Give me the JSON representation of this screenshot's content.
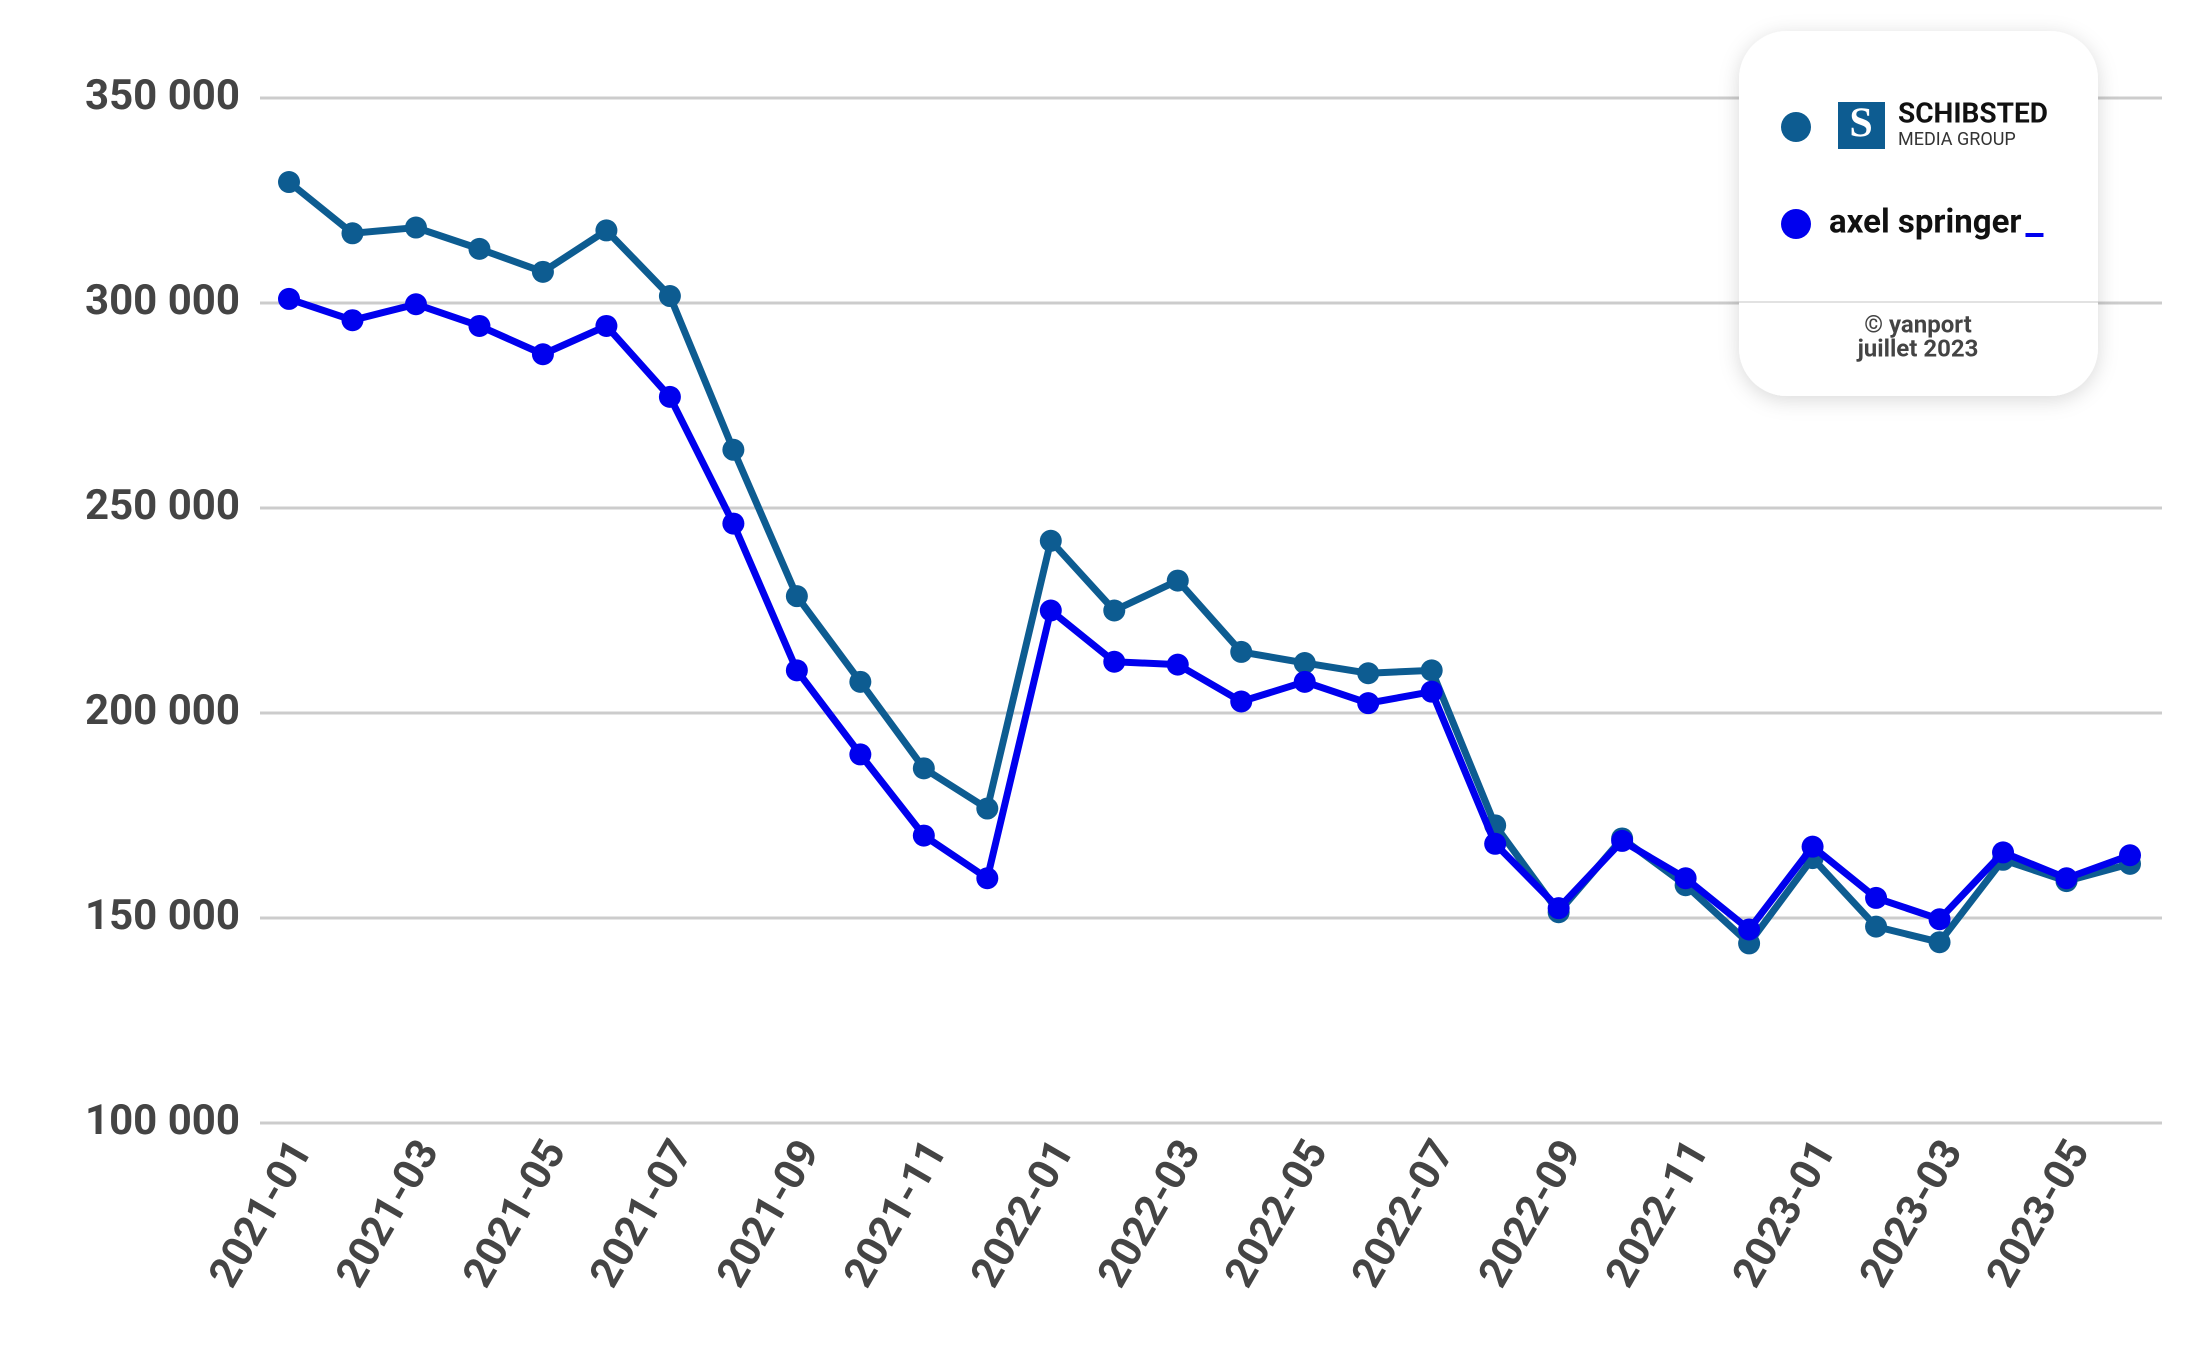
{
  "chart_data": {
    "type": "line",
    "categories": [
      "2021-01",
      null,
      "2021-03",
      null,
      "2021-05",
      null,
      "2021-07",
      null,
      "2021-09",
      null,
      "2021-11",
      null,
      "2022-01",
      null,
      "2022-03",
      null,
      "2022-05",
      null,
      "2022-07",
      null,
      "2022-09",
      null,
      "2022-11",
      null,
      "2023-01",
      null,
      "2023-03",
      null,
      "2023-05",
      null
    ],
    "series": [
      {
        "name": "SCHIBSTED",
        "subname": "MEDIA GROUP",
        "color": "#0d5c91",
        "values": [
          329500,
          317000,
          318400,
          313200,
          307600,
          317700,
          301700,
          264200,
          228500,
          207600,
          186500,
          176700,
          242000,
          225000,
          232300,
          214900,
          212200,
          209700,
          210400,
          172600,
          151400,
          169400,
          158000,
          143800,
          164600,
          147900,
          144100,
          164200,
          159000,
          163200
        ]
      },
      {
        "name": "axel springer",
        "color": "#0000ee",
        "values": [
          301000,
          295800,
          299700,
          294400,
          287500,
          294400,
          277100,
          246200,
          210400,
          189900,
          170100,
          159700,
          225000,
          212500,
          211800,
          202800,
          207600,
          202400,
          205200,
          168100,
          152400,
          168800,
          159700,
          147200,
          167400,
          154900,
          149700,
          166000,
          159700,
          165300
        ]
      }
    ],
    "ylim": [
      100000,
      350000
    ],
    "yticks": [
      {
        "value": 100000,
        "label": "100 000"
      },
      {
        "value": 150000,
        "label": "150 000"
      },
      {
        "value": 200000,
        "label": "200 000"
      },
      {
        "value": 250000,
        "label": "250 000"
      },
      {
        "value": 300000,
        "label": "300 000"
      },
      {
        "value": 350000,
        "label": "350 000"
      }
    ],
    "grid": true,
    "credit": [
      "© yanport",
      "juillet 2023"
    ]
  }
}
